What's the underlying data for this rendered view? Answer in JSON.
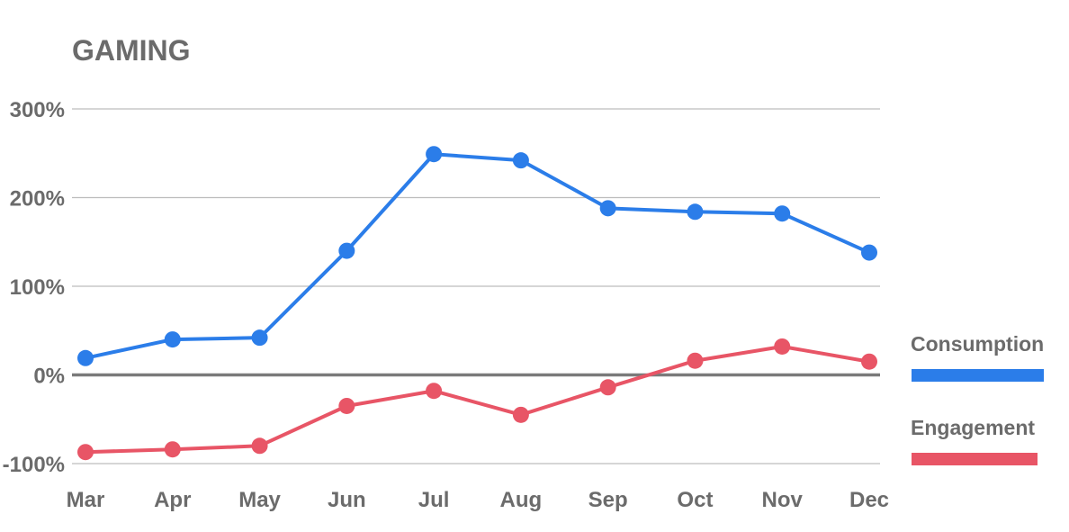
{
  "title": "GAMING",
  "chart_data": {
    "type": "line",
    "title": "GAMING",
    "categories": [
      "Mar",
      "Apr",
      "May",
      "Jun",
      "Jul",
      "Aug",
      "Sep",
      "Oct",
      "Nov",
      "Dec"
    ],
    "series": [
      {
        "name": "Consumption",
        "color": "#2b7de9",
        "values": [
          19,
          40,
          42,
          140,
          249,
          242,
          188,
          184,
          182,
          138
        ]
      },
      {
        "name": "Engagement",
        "color": "#e85566",
        "values": [
          -87,
          -84,
          -80,
          -35,
          -18,
          -45,
          -14,
          16,
          32,
          15
        ]
      }
    ],
    "ylim": [
      -100,
      300
    ],
    "yticks": [
      300,
      200,
      100,
      0,
      -100
    ],
    "ytick_labels": [
      "300%",
      "200%",
      "100%",
      "0%",
      "-100%"
    ],
    "grid": true,
    "legend": "right"
  }
}
